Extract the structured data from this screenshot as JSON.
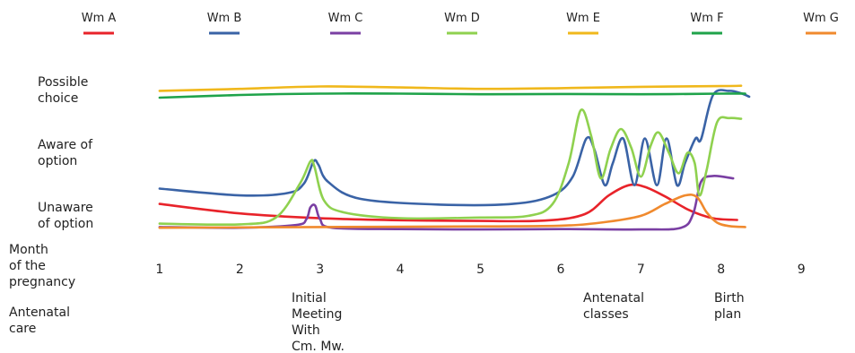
{
  "chart_data": {
    "type": "line",
    "title": "",
    "xlabel": "Month of the pregnancy",
    "ylabel": "",
    "x_ticks": [
      "1",
      "2",
      "3",
      "4",
      "5",
      "6",
      "7",
      "8",
      "9"
    ],
    "xlim": [
      0.8,
      9.3
    ],
    "ylim": [
      0,
      5
    ],
    "y_categories": [
      {
        "label": "Unaware of option",
        "level": 1
      },
      {
        "label": "Aware of option",
        "level": 2.5
      },
      {
        "label": "Possible choice",
        "level": 4
      }
    ],
    "y_category_labels": [
      "Unaware\nof option",
      "Aware of\noption",
      "Possible\nchoice"
    ],
    "events_label": "Antenatal care",
    "events": [
      {
        "label": "Initial Meeting With Cm. Mw.",
        "x": 2.9
      },
      {
        "label": "Antenatal classes",
        "x": 6.55
      },
      {
        "label": "Birth plan",
        "x": 7.95
      }
    ],
    "series": [
      {
        "name": "Wm A",
        "color": "#e8232a",
        "points": [
          [
            1.0,
            0.8
          ],
          [
            2.0,
            0.52
          ],
          [
            3.0,
            0.38
          ],
          [
            4.0,
            0.32
          ],
          [
            5.0,
            0.3
          ],
          [
            5.8,
            0.31
          ],
          [
            6.3,
            0.5
          ],
          [
            6.6,
            1.05
          ],
          [
            6.85,
            1.35
          ],
          [
            7.05,
            1.3
          ],
          [
            7.3,
            1.02
          ],
          [
            7.6,
            0.62
          ],
          [
            7.9,
            0.38
          ],
          [
            8.2,
            0.33
          ]
        ]
      },
      {
        "name": "Wm B",
        "color": "#3a63a6",
        "points": [
          [
            1.0,
            1.25
          ],
          [
            2.0,
            1.05
          ],
          [
            2.6,
            1.12
          ],
          [
            2.8,
            1.4
          ],
          [
            2.92,
            2.05
          ],
          [
            2.98,
            1.95
          ],
          [
            3.1,
            1.45
          ],
          [
            3.5,
            0.95
          ],
          [
            4.5,
            0.78
          ],
          [
            5.4,
            0.8
          ],
          [
            5.9,
            1.05
          ],
          [
            6.15,
            1.6
          ],
          [
            6.32,
            2.72
          ],
          [
            6.42,
            2.4
          ],
          [
            6.55,
            1.35
          ],
          [
            6.65,
            2.0
          ],
          [
            6.78,
            2.72
          ],
          [
            6.92,
            1.35
          ],
          [
            7.05,
            2.72
          ],
          [
            7.2,
            1.35
          ],
          [
            7.32,
            2.72
          ],
          [
            7.45,
            1.35
          ],
          [
            7.55,
            2.0
          ],
          [
            7.68,
            2.72
          ],
          [
            7.75,
            2.7
          ],
          [
            7.9,
            4.0
          ],
          [
            8.1,
            4.12
          ],
          [
            8.25,
            4.05
          ],
          [
            8.35,
            3.95
          ]
        ]
      },
      {
        "name": "Wm C",
        "color": "#7a3fa3",
        "points": [
          [
            1.0,
            0.12
          ],
          [
            2.0,
            0.1
          ],
          [
            2.7,
            0.18
          ],
          [
            2.83,
            0.35
          ],
          [
            2.88,
            0.7
          ],
          [
            2.94,
            0.75
          ],
          [
            3.0,
            0.35
          ],
          [
            3.15,
            0.1
          ],
          [
            4.0,
            0.06
          ],
          [
            5.0,
            0.05
          ],
          [
            6.0,
            0.06
          ],
          [
            7.0,
            0.05
          ],
          [
            7.5,
            0.1
          ],
          [
            7.65,
            0.5
          ],
          [
            7.75,
            1.45
          ],
          [
            7.9,
            1.62
          ],
          [
            8.15,
            1.55
          ]
        ]
      },
      {
        "name": "Wm D",
        "color": "#8fd14f",
        "points": [
          [
            1.0,
            0.22
          ],
          [
            2.0,
            0.2
          ],
          [
            2.45,
            0.4
          ],
          [
            2.75,
            1.4
          ],
          [
            2.88,
            2.05
          ],
          [
            2.93,
            1.9
          ],
          [
            3.05,
            0.9
          ],
          [
            3.3,
            0.55
          ],
          [
            4.0,
            0.38
          ],
          [
            5.0,
            0.4
          ],
          [
            5.6,
            0.45
          ],
          [
            5.9,
            0.8
          ],
          [
            6.1,
            2.0
          ],
          [
            6.25,
            3.55
          ],
          [
            6.38,
            2.8
          ],
          [
            6.5,
            1.55
          ],
          [
            6.62,
            2.4
          ],
          [
            6.75,
            3.0
          ],
          [
            6.88,
            2.45
          ],
          [
            7.0,
            1.6
          ],
          [
            7.12,
            2.5
          ],
          [
            7.22,
            2.9
          ],
          [
            7.35,
            2.3
          ],
          [
            7.47,
            1.7
          ],
          [
            7.58,
            2.3
          ],
          [
            7.67,
            2.0
          ],
          [
            7.73,
            1.05
          ],
          [
            7.82,
            1.8
          ],
          [
            7.95,
            3.2
          ],
          [
            8.1,
            3.32
          ],
          [
            8.25,
            3.3
          ]
        ]
      },
      {
        "name": "Wm E",
        "color": "#f0b81c",
        "points": [
          [
            1.0,
            4.12
          ],
          [
            2.0,
            4.18
          ],
          [
            3.0,
            4.25
          ],
          [
            4.0,
            4.22
          ],
          [
            5.0,
            4.18
          ],
          [
            6.0,
            4.2
          ],
          [
            7.0,
            4.24
          ],
          [
            8.0,
            4.26
          ],
          [
            8.25,
            4.27
          ]
        ]
      },
      {
        "name": "Wm F",
        "color": "#1fa34a",
        "points": [
          [
            1.0,
            3.92
          ],
          [
            2.0,
            4.0
          ],
          [
            3.0,
            4.04
          ],
          [
            4.0,
            4.04
          ],
          [
            5.0,
            4.02
          ],
          [
            6.0,
            4.03
          ],
          [
            7.0,
            4.02
          ],
          [
            8.0,
            4.04
          ],
          [
            8.3,
            4.04
          ]
        ]
      },
      {
        "name": "Wm G",
        "color": "#f08a2e",
        "points": [
          [
            1.0,
            0.1
          ],
          [
            3.0,
            0.12
          ],
          [
            5.0,
            0.14
          ],
          [
            6.0,
            0.16
          ],
          [
            6.5,
            0.25
          ],
          [
            7.0,
            0.45
          ],
          [
            7.3,
            0.8
          ],
          [
            7.55,
            1.05
          ],
          [
            7.7,
            1.0
          ],
          [
            7.82,
            0.55
          ],
          [
            7.95,
            0.25
          ],
          [
            8.1,
            0.15
          ],
          [
            8.3,
            0.12
          ]
        ]
      }
    ]
  }
}
